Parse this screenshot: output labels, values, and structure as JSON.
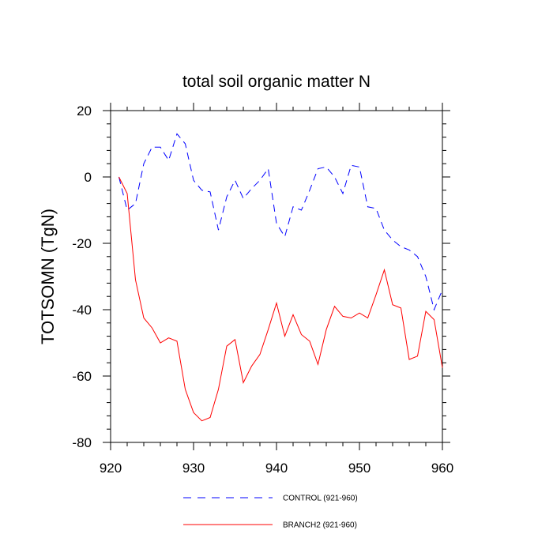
{
  "chart_data": {
    "type": "line",
    "title": "total soil organic matter N",
    "xlabel": "",
    "ylabel": "TOTSOMN  (TgN)",
    "xlim": [
      920,
      960
    ],
    "ylim": [
      -80,
      20
    ],
    "xticks": [
      920,
      930,
      940,
      950,
      960
    ],
    "yticks": [
      20,
      0,
      -20,
      -40,
      -60,
      -80
    ],
    "grid": false,
    "legend_position": "bottom",
    "x": [
      921,
      922,
      923,
      924,
      925,
      926,
      927,
      928,
      929,
      930,
      931,
      932,
      933,
      934,
      935,
      936,
      937,
      938,
      939,
      940,
      941,
      942,
      943,
      944,
      945,
      946,
      947,
      948,
      949,
      950,
      951,
      952,
      953,
      954,
      955,
      956,
      957,
      958,
      959,
      960
    ],
    "series": [
      {
        "name": "CONTROL (921-960)",
        "color": "#0000ff",
        "dash": "dashed",
        "values": [
          0,
          -10,
          -8,
          4,
          9,
          9,
          5,
          13,
          10,
          -1,
          -4,
          -4.5,
          -16,
          -6,
          -1,
          -6.5,
          -3.5,
          -1,
          2.5,
          -14,
          -18,
          -9,
          -10,
          -4,
          2.5,
          3,
          0,
          -5,
          3.5,
          3,
          -9,
          -9.5,
          -16,
          -19,
          -21,
          -22,
          -24,
          -30,
          -40,
          -34
        ]
      },
      {
        "name": "BRANCH2 (921-960)",
        "color": "#ff0000",
        "dash": "solid",
        "values": [
          0,
          -5,
          -31,
          -42.5,
          -45.5,
          -50,
          -48.5,
          -49.5,
          -64,
          -71,
          -73.5,
          -72.5,
          -64,
          -51,
          -49,
          -62,
          -57,
          -53.5,
          -46,
          -38,
          -48,
          -41.5,
          -47.5,
          -49.5,
          -56.5,
          -46,
          -39,
          -42,
          -42.5,
          -41,
          -42.5,
          -35.5,
          -28,
          -38.5,
          -39.5,
          -55,
          -54,
          -40.5,
          -43,
          -57.5
        ]
      }
    ]
  }
}
